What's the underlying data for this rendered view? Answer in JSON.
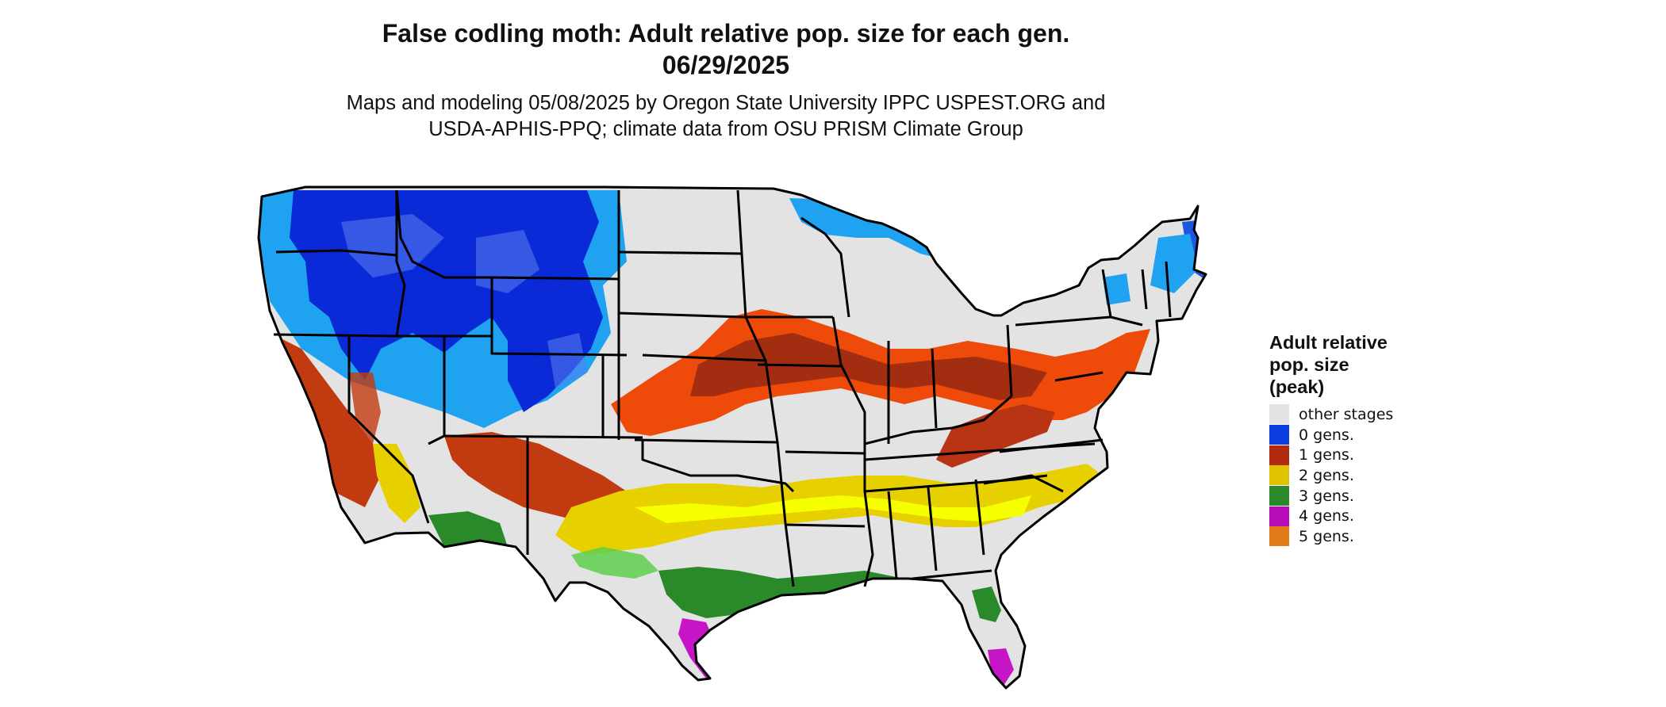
{
  "title": {
    "line1": "False codling moth: Adult relative pop. size for each gen.",
    "line2": "06/29/2025"
  },
  "subtitle": {
    "line1": "Maps and modeling 05/08/2025 by Oregon State University IPPC USPEST.ORG and",
    "line2": "USDA-APHIS-PPQ; climate data from OSU PRISM Climate Group"
  },
  "legend": {
    "title_line1": "Adult relative",
    "title_line2": "pop. size",
    "title_line3": "(peak)",
    "items": [
      {
        "label": "other stages",
        "color": "#e3e3e3"
      },
      {
        "label": "0 gens.",
        "color": "#0a3ee0"
      },
      {
        "label": "1 gens.",
        "color": "#b1290f"
      },
      {
        "label": "2 gens.",
        "color": "#e0c300"
      },
      {
        "label": "3 gens.",
        "color": "#2a8a2a"
      },
      {
        "label": "4 gens.",
        "color": "#b70bb7"
      },
      {
        "label": "5 gens.",
        "color": "#e07a18"
      }
    ]
  },
  "map": {
    "region": "contiguous United States",
    "colors": {
      "base": "#e3e3e3",
      "gen0_dark": "#0a2ad8",
      "gen0_light": "#1fa3f0",
      "gen1_dark": "#a32d10",
      "gen1_bright": "#ee4a0a",
      "gen2": "#e7d000",
      "gen2_bright": "#f6ff00",
      "gen3": "#2a8a2a",
      "gen3_light": "#5ecf4e",
      "gen4": "#c615c6",
      "border": "#000000"
    }
  }
}
